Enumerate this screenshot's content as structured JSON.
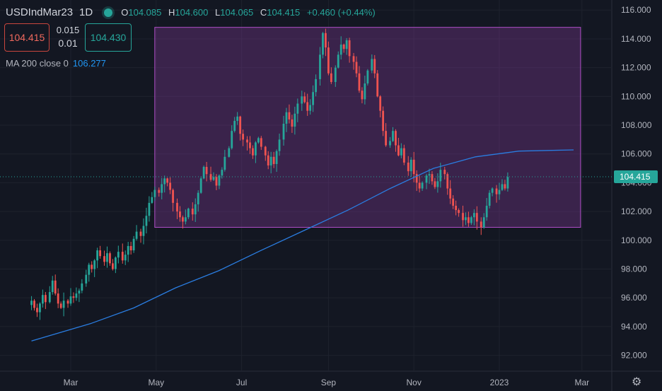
{
  "header": {
    "symbol": "USDIndMar23",
    "timeframe": "1D",
    "ohlc": [
      {
        "key": "O",
        "value": "104.085"
      },
      {
        "key": "H",
        "value": "104.600"
      },
      {
        "key": "L",
        "value": "104.065"
      },
      {
        "key": "C",
        "value": "104.415"
      }
    ],
    "change": "+0.460 (+0.44%)"
  },
  "trade": {
    "sell_price": "104.415",
    "spread_top": "0.015",
    "spread_bottom": "0.01",
    "buy_price": "104.430"
  },
  "indicator": {
    "label": "MA 200 close 0",
    "value": "106.277"
  },
  "chart_data": {
    "type": "candlestick",
    "series": [
      {
        "name": "USDIndMar23"
      },
      {
        "name": "MA 200 close 0",
        "type": "line"
      }
    ],
    "y_ticks": [
      "92.000",
      "94.000",
      "96.000",
      "98.000",
      "100.000",
      "102.000",
      "104.000",
      "106.000",
      "108.000",
      "110.000",
      "112.000",
      "114.000",
      "116.000"
    ],
    "ylim": [
      90.9,
      116.7
    ],
    "x_ticks": [
      {
        "label": "Mar",
        "date": "2022-03-01"
      },
      {
        "label": "May",
        "date": "2022-05-01"
      },
      {
        "label": "Jul",
        "date": "2022-07-01"
      },
      {
        "label": "Sep",
        "date": "2022-09-01"
      },
      {
        "label": "Nov",
        "date": "2022-11-01"
      },
      {
        "label": "2023",
        "date": "2023-01-01"
      },
      {
        "label": "Mar",
        "date": "2023-03-01"
      }
    ],
    "last_price": "104.415",
    "rectangle": {
      "x0": "2022-04-30",
      "x1": "2023-02-28",
      "y0": 100.9,
      "y1": 114.8
    },
    "closes": [
      95.8,
      95.3,
      95.0,
      95.6,
      96.2,
      95.7,
      96.4,
      97.2,
      96.3,
      95.6,
      95.3,
      95.8,
      95.6,
      96.1,
      96.0,
      96.3,
      96.5,
      97.0,
      97.6,
      98.3,
      98.0,
      98.6,
      99.3,
      98.9,
      98.5,
      99.1,
      98.4,
      98.0,
      98.8,
      99.2,
      98.6,
      99.0,
      99.6,
      99.3,
      100.1,
      100.6,
      100.3,
      101.0,
      101.7,
      102.6,
      103.0,
      103.5,
      103.3,
      103.9,
      104.3,
      104.0,
      103.5,
      102.6,
      102.0,
      101.6,
      101.3,
      101.6,
      102.2,
      101.8,
      102.5,
      103.3,
      104.3,
      105.1,
      104.6,
      104.2,
      104.4,
      103.8,
      104.5,
      104.9,
      105.8,
      106.4,
      107.6,
      108.3,
      108.6,
      107.4,
      107.0,
      106.8,
      106.4,
      105.9,
      106.8,
      107.1,
      106.5,
      105.9,
      105.2,
      105.8,
      105.3,
      106.2,
      107.0,
      108.1,
      108.9,
      108.4,
      107.9,
      108.8,
      109.5,
      110.0,
      109.6,
      109.0,
      109.4,
      110.3,
      111.2,
      112.9,
      114.4,
      113.4,
      111.6,
      111.0,
      112.0,
      112.9,
      113.6,
      113.3,
      113.9,
      112.8,
      112.4,
      111.6,
      110.4,
      109.8,
      110.9,
      111.8,
      112.6,
      111.6,
      110.0,
      109.0,
      107.6,
      106.6,
      106.9,
      107.6,
      106.6,
      105.9,
      106.4,
      105.4,
      104.8,
      105.6,
      104.6,
      104.0,
      103.6,
      104.0,
      104.5,
      104.6,
      104.1,
      103.7,
      104.1,
      104.9,
      104.6,
      103.6,
      102.9,
      102.4,
      102.1,
      101.9,
      101.4,
      101.6,
      101.2,
      101.6,
      101.9,
      101.3,
      100.9,
      101.6,
      102.4,
      103.3,
      103.6,
      103.2,
      103.5,
      103.9,
      103.6,
      104.4
    ]
  }
}
